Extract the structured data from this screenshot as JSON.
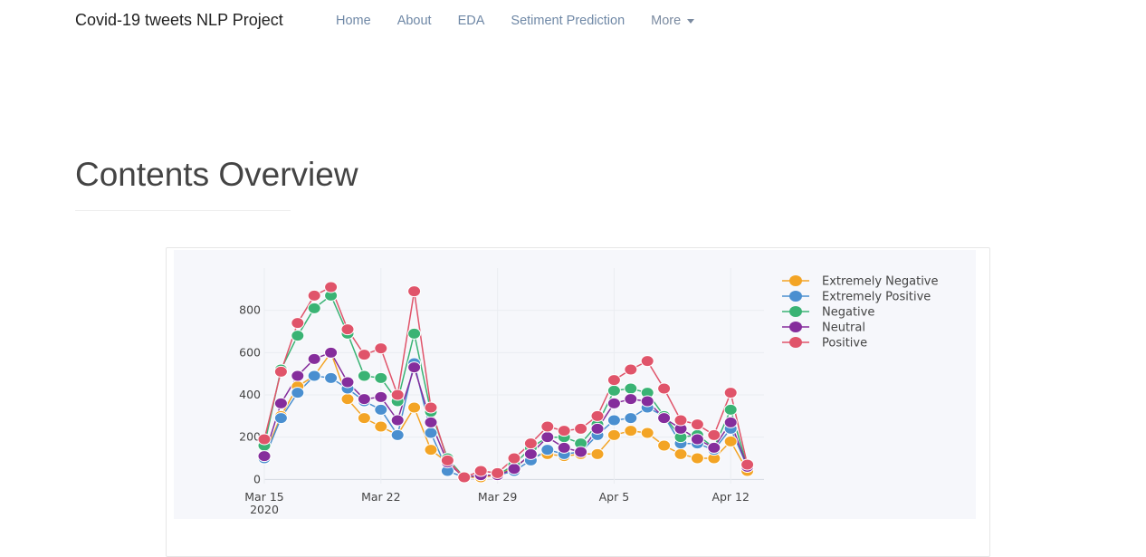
{
  "navbar": {
    "brand": "Covid-19 tweets NLP Project",
    "links": [
      {
        "label": "Home"
      },
      {
        "label": "About"
      },
      {
        "label": "EDA"
      },
      {
        "label": "Setiment Prediction"
      }
    ],
    "more_label": "More"
  },
  "page": {
    "title": "Contents Overview"
  },
  "chart_data": {
    "type": "line",
    "x": [
      "2020-03-15",
      "2020-03-16",
      "2020-03-17",
      "2020-03-18",
      "2020-03-19",
      "2020-03-20",
      "2020-03-21",
      "2020-03-22",
      "2020-03-23",
      "2020-03-24",
      "2020-03-25",
      "2020-03-26",
      "2020-03-27",
      "2020-03-28",
      "2020-03-29",
      "2020-03-30",
      "2020-03-31",
      "2020-04-01",
      "2020-04-02",
      "2020-04-03",
      "2020-04-04",
      "2020-04-05",
      "2020-04-06",
      "2020-04-07",
      "2020-04-08",
      "2020-04-09",
      "2020-04-10",
      "2020-04-11",
      "2020-04-12",
      "2020-04-13",
      "2020-04-14"
    ],
    "x_ticks": [
      {
        "date": "2020-03-15",
        "label": "Mar 15",
        "sublabel": "2020"
      },
      {
        "date": "2020-03-22",
        "label": "Mar 22",
        "sublabel": ""
      },
      {
        "date": "2020-03-29",
        "label": "Mar 29",
        "sublabel": ""
      },
      {
        "date": "2020-04-05",
        "label": "Apr 5",
        "sublabel": ""
      },
      {
        "date": "2020-04-12",
        "label": "Apr 12",
        "sublabel": ""
      }
    ],
    "yticks": [
      0,
      200,
      400,
      600,
      800
    ],
    "ylim": [
      -20,
      1000
    ],
    "legend_position": "top-right",
    "grid": true,
    "series": [
      {
        "name": "Extremely Negative",
        "color": "#f3a425",
        "values": [
          110,
          300,
          440,
          490,
          600,
          380,
          290,
          250,
          210,
          340,
          140,
          80,
          10,
          10,
          20,
          60,
          110,
          120,
          110,
          120,
          120,
          210,
          230,
          220,
          160,
          120,
          100,
          100,
          180,
          40,
          null
        ]
      },
      {
        "name": "Extremely Positive",
        "color": "#4a8fd0",
        "values": [
          100,
          290,
          410,
          490,
          480,
          430,
          370,
          330,
          210,
          550,
          220,
          40,
          10,
          20,
          20,
          40,
          90,
          140,
          120,
          130,
          210,
          280,
          290,
          340,
          300,
          170,
          170,
          140,
          240,
          60,
          null
        ]
      },
      {
        "name": "Negative",
        "color": "#3ab374",
        "values": [
          160,
          520,
          680,
          810,
          870,
          690,
          490,
          480,
          370,
          690,
          320,
          100,
          10,
          20,
          20,
          70,
          150,
          200,
          200,
          170,
          260,
          420,
          430,
          410,
          300,
          200,
          210,
          150,
          330,
          60,
          null
        ]
      },
      {
        "name": "Neutral",
        "color": "#852d9c",
        "values": [
          110,
          360,
          490,
          570,
          600,
          460,
          380,
          390,
          280,
          530,
          270,
          80,
          10,
          20,
          20,
          50,
          120,
          200,
          150,
          130,
          240,
          360,
          380,
          370,
          290,
          240,
          190,
          150,
          270,
          60,
          null
        ]
      },
      {
        "name": "Positive",
        "color": "#e0546a",
        "values": [
          190,
          510,
          740,
          870,
          910,
          710,
          590,
          620,
          400,
          890,
          340,
          90,
          10,
          40,
          30,
          100,
          170,
          250,
          230,
          240,
          300,
          470,
          520,
          560,
          430,
          280,
          260,
          210,
          410,
          70,
          null
        ]
      }
    ]
  }
}
